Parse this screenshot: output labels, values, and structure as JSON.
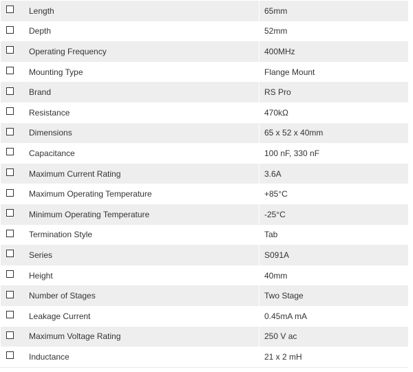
{
  "specs": [
    {
      "label": "Length",
      "value": "65mm"
    },
    {
      "label": "Depth",
      "value": "52mm"
    },
    {
      "label": "Operating Frequency",
      "value": "400MHz"
    },
    {
      "label": "Mounting Type",
      "value": "Flange Mount"
    },
    {
      "label": "Brand",
      "value": "RS Pro"
    },
    {
      "label": "Resistance",
      "value": "470kΩ"
    },
    {
      "label": "Dimensions",
      "value": "65 x 52 x 40mm"
    },
    {
      "label": "Capacitance",
      "value": "100 nF, 330 nF"
    },
    {
      "label": "Maximum Current Rating",
      "value": "3.6A"
    },
    {
      "label": "Maximum Operating Temperature",
      "value": "+85°C"
    },
    {
      "label": "Minimum Operating Temperature",
      "value": "-25°C"
    },
    {
      "label": "Termination Style",
      "value": "Tab"
    },
    {
      "label": "Series",
      "value": "S091A"
    },
    {
      "label": "Height",
      "value": "40mm"
    },
    {
      "label": "Number of Stages",
      "value": "Two Stage"
    },
    {
      "label": "Leakage Current",
      "value": "0.45mA mA"
    },
    {
      "label": "Maximum Voltage Rating",
      "value": "250 V ac"
    },
    {
      "label": "Inductance",
      "value": "21 x 2 mH"
    }
  ]
}
